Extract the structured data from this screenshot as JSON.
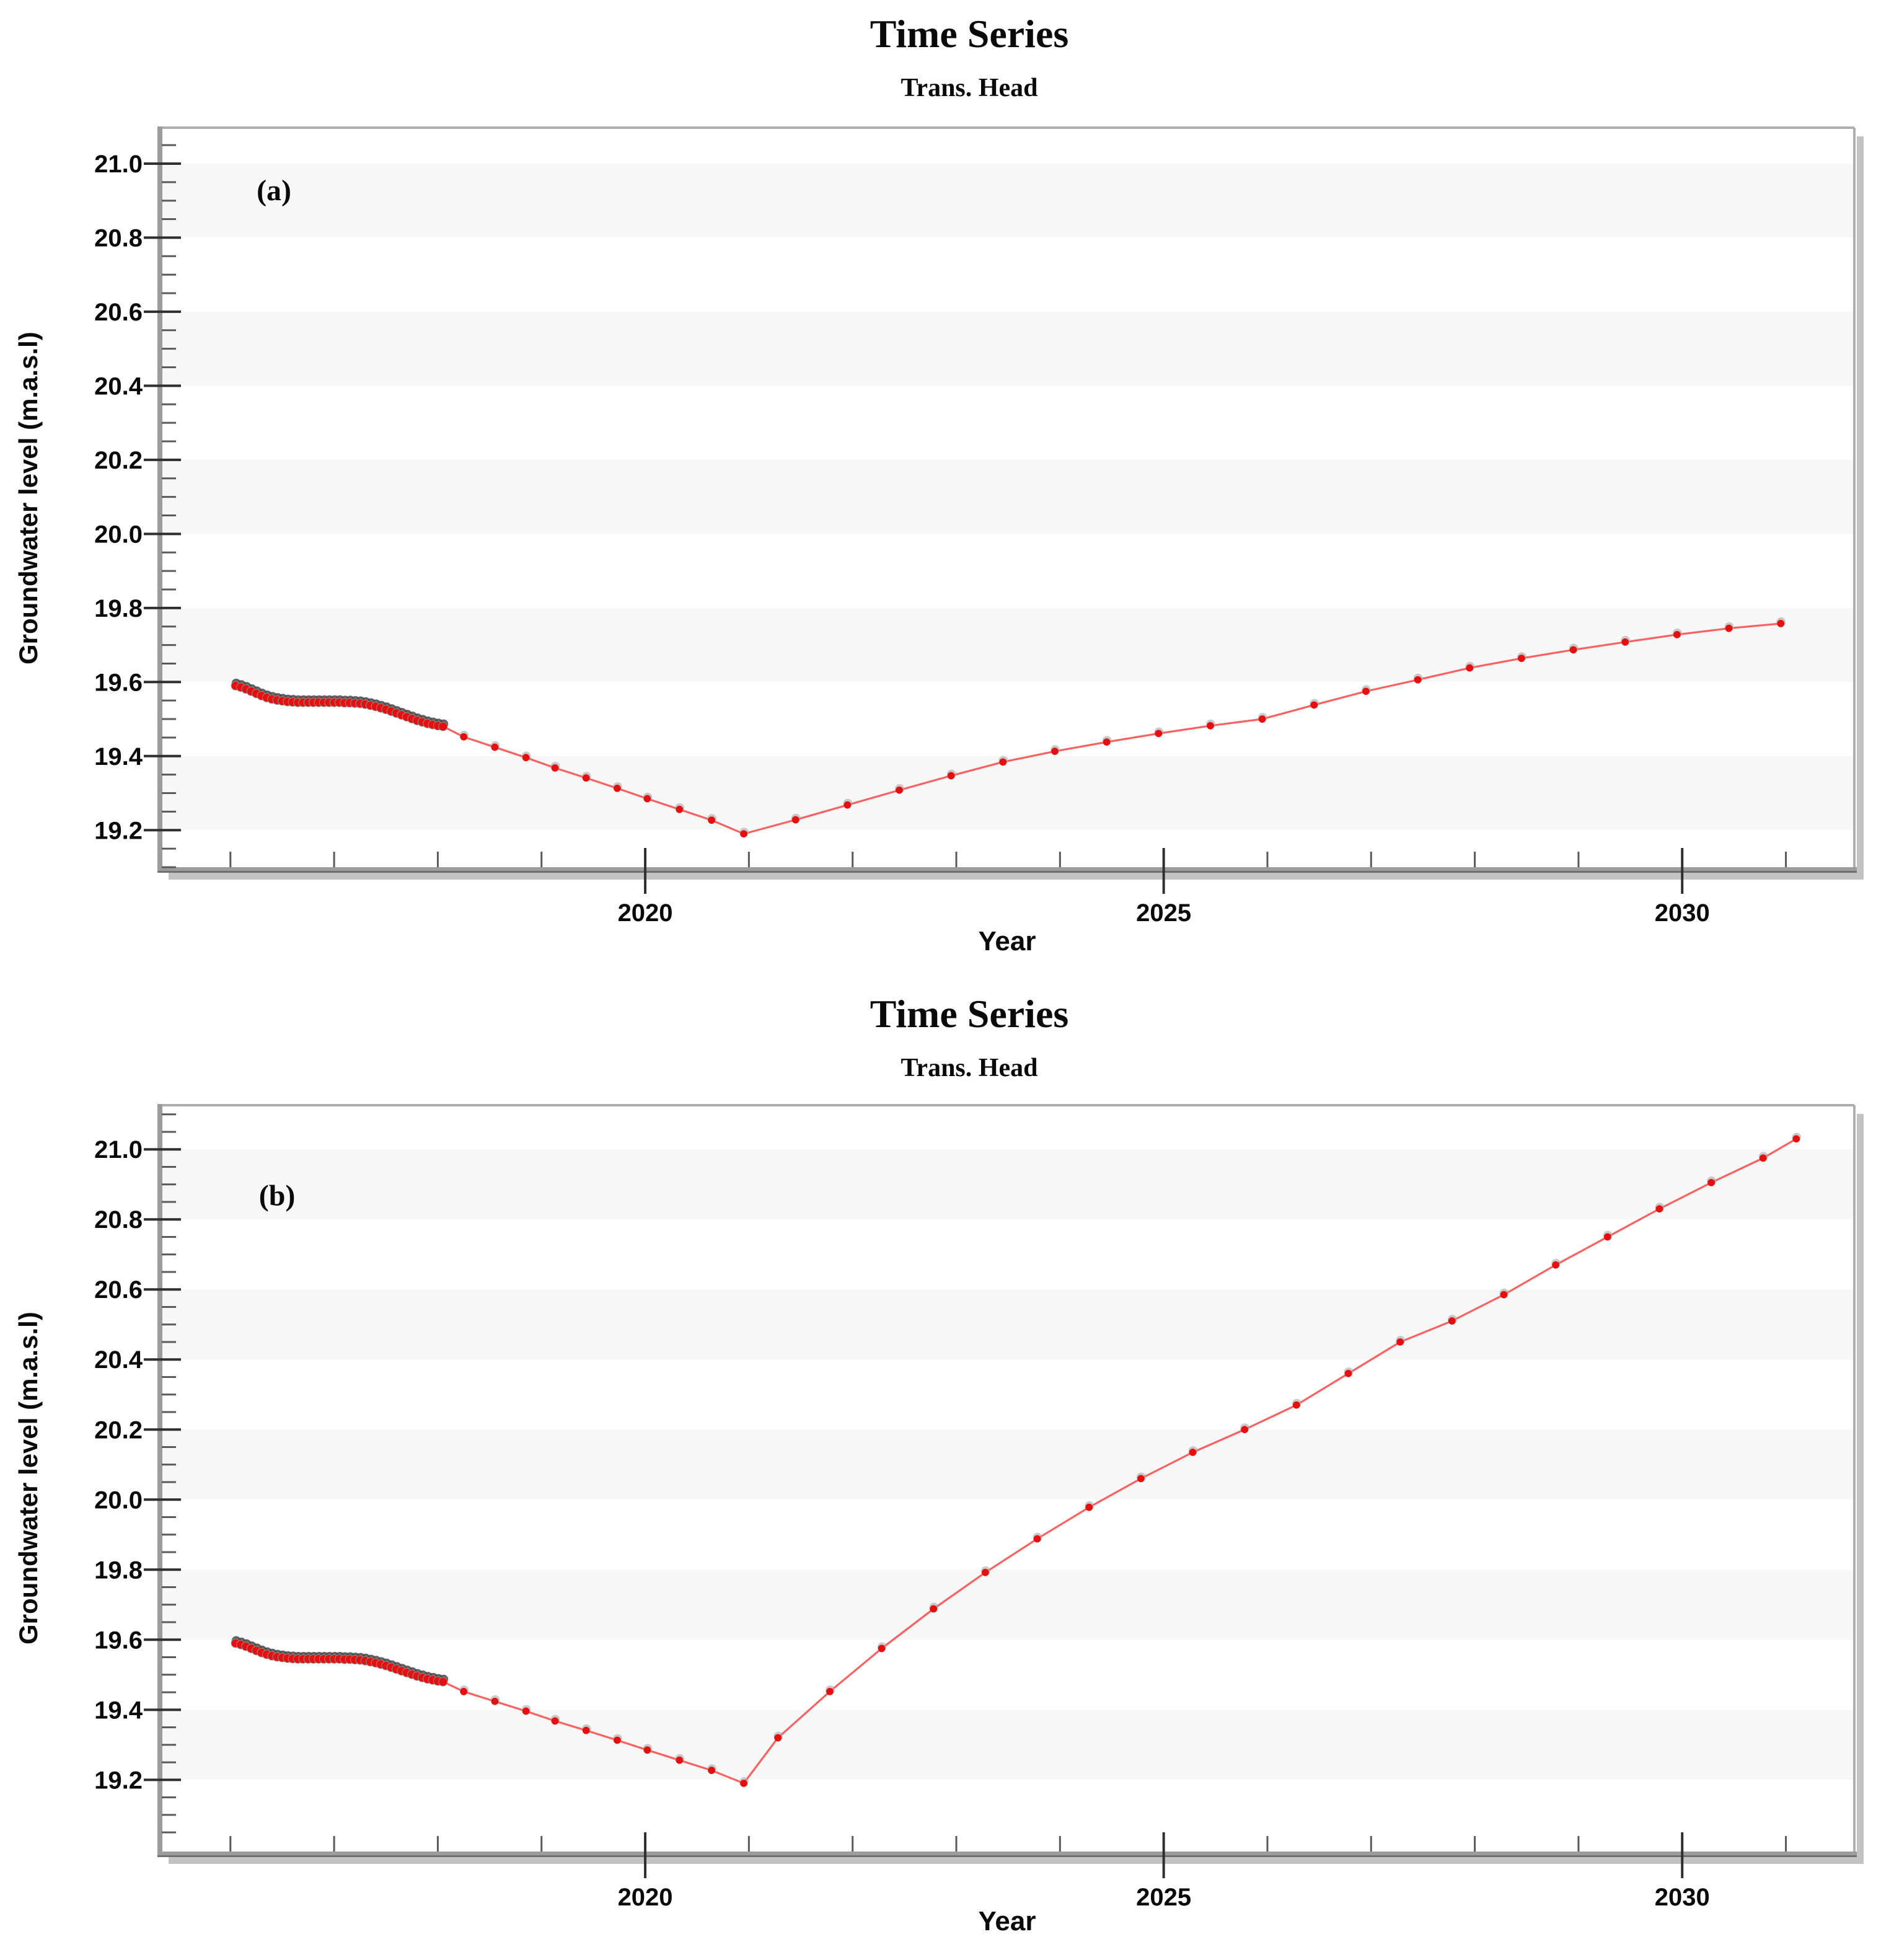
{
  "figure": {
    "colors": {
      "background": "#ffffff",
      "band": "#f7f7f7",
      "spine": "#9c9c9c",
      "spine_light": "#aeaeae",
      "spine_dark": "#6f6f6f",
      "frame_shadow": "#c3c3c3",
      "tick_major": "#2f2f2f",
      "tick_minor": "#5a5a5a",
      "line_red": "#fc5050",
      "marker_red": "#e60f0f",
      "marker_halo": "#a8a8a8",
      "dense_shadow": "#474747",
      "text": "#0a0a0a"
    }
  },
  "panels": [
    {
      "id": "a",
      "title": "Time Series",
      "subtitle": "Trans. Head",
      "xlabel": "Year",
      "ylabel": "Groundwater level (m.a.s.l)",
      "annotation": "(a)"
    },
    {
      "id": "b",
      "title": "Time Series",
      "subtitle": "Trans. Head",
      "xlabel": "Year",
      "ylabel": "Groundwater level (m.a.s.l)",
      "annotation": "(b)"
    }
  ],
  "chart_data": [
    {
      "type": "line",
      "panel": "a",
      "title": "Time Series",
      "subtitle": "Trans. Head",
      "xlabel": "Year",
      "ylabel": "Groundwater level (m.a.s.l)",
      "annotation": {
        "label": "(a)",
        "x": 2016.42,
        "y": 20.93
      },
      "xlim": [
        2015.32,
        2031.66
      ],
      "ylim": [
        19.095,
        21.097
      ],
      "xticks_major": [
        2020,
        2025,
        2030
      ],
      "xtick_labels": [
        "2020",
        "2025",
        "2030"
      ],
      "xticks_minor": [
        2016,
        2017,
        2018,
        2019,
        2021,
        2022,
        2023,
        2024,
        2026,
        2027,
        2028,
        2029,
        2031
      ],
      "yticks_major": [
        19.2,
        19.4,
        19.6,
        19.8,
        20.0,
        20.2,
        20.4,
        20.6,
        20.8,
        21.0
      ],
      "ytick_labels": [
        "19.2",
        "19.4",
        "19.6",
        "19.8",
        "20.0",
        "20.2",
        "20.4",
        "20.6",
        "20.8",
        "21.0"
      ],
      "yminor_step": 0.05,
      "grid_bands": [
        [
          19.2,
          19.4
        ],
        [
          19.6,
          19.8
        ],
        [
          20.0,
          20.2
        ],
        [
          20.4,
          20.6
        ],
        [
          20.8,
          21.0
        ]
      ],
      "legend": "none",
      "series": [
        {
          "name": "head-historical-dense",
          "style": "dense",
          "points": [
            [
              2016.05,
              19.59
            ],
            [
              2016.1,
              19.586
            ],
            [
              2016.15,
              19.581
            ],
            [
              2016.2,
              19.575
            ],
            [
              2016.25,
              19.569
            ],
            [
              2016.3,
              19.563
            ],
            [
              2016.35,
              19.558
            ],
            [
              2016.4,
              19.554
            ],
            [
              2016.45,
              19.551
            ],
            [
              2016.5,
              19.549
            ],
            [
              2016.55,
              19.547
            ],
            [
              2016.6,
              19.546
            ],
            [
              2016.65,
              19.545
            ],
            [
              2016.7,
              19.545
            ],
            [
              2016.75,
              19.545
            ],
            [
              2016.8,
              19.545
            ],
            [
              2016.85,
              19.545
            ],
            [
              2016.9,
              19.545
            ],
            [
              2016.95,
              19.545
            ],
            [
              2017.0,
              19.545
            ],
            [
              2017.05,
              19.545
            ],
            [
              2017.1,
              19.544
            ],
            [
              2017.15,
              19.544
            ],
            [
              2017.2,
              19.543
            ],
            [
              2017.25,
              19.542
            ],
            [
              2017.3,
              19.54
            ],
            [
              2017.35,
              19.537
            ],
            [
              2017.4,
              19.534
            ],
            [
              2017.45,
              19.53
            ],
            [
              2017.5,
              19.526
            ],
            [
              2017.55,
              19.521
            ],
            [
              2017.6,
              19.516
            ],
            [
              2017.65,
              19.511
            ],
            [
              2017.7,
              19.506
            ],
            [
              2017.75,
              19.501
            ],
            [
              2017.8,
              19.496
            ],
            [
              2017.85,
              19.492
            ],
            [
              2017.9,
              19.488
            ],
            [
              2017.95,
              19.485
            ],
            [
              2018.0,
              19.482
            ],
            [
              2018.05,
              19.48
            ]
          ]
        },
        {
          "name": "head-forecast",
          "style": "forecast",
          "points": [
            [
              2018.25,
              19.452
            ],
            [
              2018.55,
              19.424
            ],
            [
              2018.85,
              19.396
            ],
            [
              2019.13,
              19.368
            ],
            [
              2019.43,
              19.341
            ],
            [
              2019.73,
              19.313
            ],
            [
              2020.02,
              19.285
            ],
            [
              2020.33,
              19.256
            ],
            [
              2020.64,
              19.227
            ],
            [
              2020.95,
              19.19
            ],
            [
              2021.45,
              19.228
            ],
            [
              2021.95,
              19.268
            ],
            [
              2022.45,
              19.308
            ],
            [
              2022.95,
              19.347
            ],
            [
              2023.45,
              19.384
            ],
            [
              2023.95,
              19.413
            ],
            [
              2024.45,
              19.438
            ],
            [
              2024.95,
              19.461
            ],
            [
              2025.45,
              19.482
            ],
            [
              2025.95,
              19.5
            ],
            [
              2026.45,
              19.538
            ],
            [
              2026.95,
              19.575
            ],
            [
              2027.45,
              19.606
            ],
            [
              2027.95,
              19.638
            ],
            [
              2028.45,
              19.664
            ],
            [
              2028.95,
              19.687
            ],
            [
              2029.45,
              19.708
            ],
            [
              2029.95,
              19.728
            ],
            [
              2030.45,
              19.745
            ],
            [
              2030.95,
              19.758
            ]
          ]
        }
      ]
    },
    {
      "type": "line",
      "panel": "b",
      "title": "Time Series",
      "subtitle": "Trans. Head",
      "xlabel": "Year",
      "ylabel": "Groundwater level (m.a.s.l)",
      "annotation": {
        "label": "(b)",
        "x": 2016.45,
        "y": 20.87
      },
      "xlim": [
        2015.32,
        2031.66
      ],
      "ylim": [
        18.99,
        21.126
      ],
      "xticks_major": [
        2020,
        2025,
        2030
      ],
      "xtick_labels": [
        "2020",
        "2025",
        "2030"
      ],
      "xticks_minor": [
        2016,
        2017,
        2018,
        2019,
        2021,
        2022,
        2023,
        2024,
        2026,
        2027,
        2028,
        2029,
        2031
      ],
      "yticks_major": [
        19.2,
        19.4,
        19.6,
        19.8,
        20.0,
        20.2,
        20.4,
        20.6,
        20.8,
        21.0
      ],
      "ytick_labels": [
        "19.2",
        "19.4",
        "19.6",
        "19.8",
        "20.0",
        "20.2",
        "20.4",
        "20.6",
        "20.8",
        "21.0"
      ],
      "yminor_step": 0.05,
      "grid_bands": [
        [
          19.2,
          19.4
        ],
        [
          19.6,
          19.8
        ],
        [
          20.0,
          20.2
        ],
        [
          20.4,
          20.6
        ],
        [
          20.8,
          21.0
        ]
      ],
      "legend": "none",
      "series": [
        {
          "name": "head-historical-dense",
          "style": "dense",
          "points": [
            [
              2016.05,
              19.59
            ],
            [
              2016.1,
              19.586
            ],
            [
              2016.15,
              19.581
            ],
            [
              2016.2,
              19.575
            ],
            [
              2016.25,
              19.569
            ],
            [
              2016.3,
              19.563
            ],
            [
              2016.35,
              19.558
            ],
            [
              2016.4,
              19.554
            ],
            [
              2016.45,
              19.551
            ],
            [
              2016.5,
              19.549
            ],
            [
              2016.55,
              19.547
            ],
            [
              2016.6,
              19.546
            ],
            [
              2016.65,
              19.545
            ],
            [
              2016.7,
              19.545
            ],
            [
              2016.75,
              19.545
            ],
            [
              2016.8,
              19.545
            ],
            [
              2016.85,
              19.545
            ],
            [
              2016.9,
              19.545
            ],
            [
              2016.95,
              19.545
            ],
            [
              2017.0,
              19.545
            ],
            [
              2017.05,
              19.545
            ],
            [
              2017.1,
              19.544
            ],
            [
              2017.15,
              19.544
            ],
            [
              2017.2,
              19.543
            ],
            [
              2017.25,
              19.542
            ],
            [
              2017.3,
              19.54
            ],
            [
              2017.35,
              19.537
            ],
            [
              2017.4,
              19.534
            ],
            [
              2017.45,
              19.53
            ],
            [
              2017.5,
              19.526
            ],
            [
              2017.55,
              19.521
            ],
            [
              2017.6,
              19.516
            ],
            [
              2017.65,
              19.511
            ],
            [
              2017.7,
              19.506
            ],
            [
              2017.75,
              19.501
            ],
            [
              2017.8,
              19.496
            ],
            [
              2017.85,
              19.492
            ],
            [
              2017.9,
              19.488
            ],
            [
              2017.95,
              19.485
            ],
            [
              2018.0,
              19.482
            ],
            [
              2018.05,
              19.48
            ]
          ]
        },
        {
          "name": "head-forecast",
          "style": "forecast",
          "points": [
            [
              2018.25,
              19.452
            ],
            [
              2018.55,
              19.424
            ],
            [
              2018.85,
              19.396
            ],
            [
              2019.13,
              19.368
            ],
            [
              2019.43,
              19.341
            ],
            [
              2019.73,
              19.313
            ],
            [
              2020.02,
              19.285
            ],
            [
              2020.33,
              19.256
            ],
            [
              2020.64,
              19.227
            ],
            [
              2020.95,
              19.19
            ],
            [
              2021.28,
              19.32
            ],
            [
              2021.78,
              19.452
            ],
            [
              2022.28,
              19.575
            ],
            [
              2022.78,
              19.688
            ],
            [
              2023.28,
              19.792
            ],
            [
              2023.78,
              19.888
            ],
            [
              2024.28,
              19.978
            ],
            [
              2024.78,
              20.06
            ],
            [
              2025.28,
              20.135
            ],
            [
              2025.78,
              20.2
            ],
            [
              2026.28,
              20.27
            ],
            [
              2026.78,
              20.36
            ],
            [
              2027.28,
              20.45
            ],
            [
              2027.78,
              20.51
            ],
            [
              2028.28,
              20.585
            ],
            [
              2028.78,
              20.67
            ],
            [
              2029.28,
              20.75
            ],
            [
              2029.78,
              20.83
            ],
            [
              2030.28,
              20.905
            ],
            [
              2030.78,
              20.975
            ],
            [
              2031.1,
              21.03
            ]
          ]
        }
      ]
    }
  ]
}
